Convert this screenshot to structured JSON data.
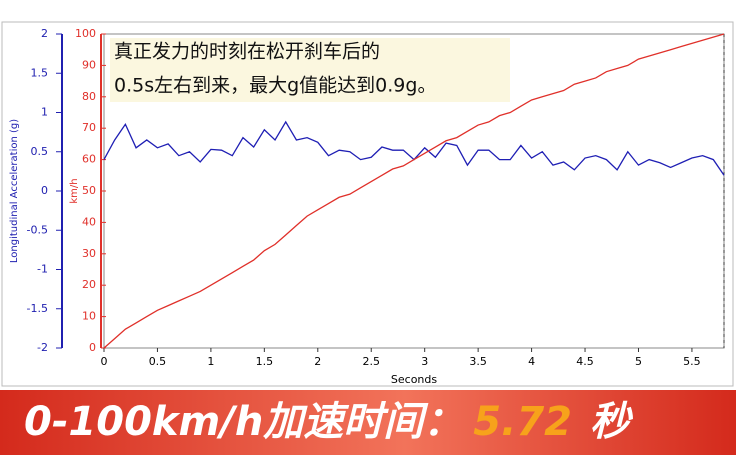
{
  "chart_data": {
    "type": "line",
    "annotation": [
      "真正发力的时刻在松开刹车后的",
      "0.5s左右到来，最大g值能达到0.9g。"
    ],
    "xlabel": "Seconds",
    "ylabel": "Longitudinal Acceleration (g)",
    "y2label": "km/h",
    "x": [
      0,
      0.1,
      0.2,
      0.3,
      0.4,
      0.5,
      0.6,
      0.7,
      0.8,
      0.9,
      1.0,
      1.1,
      1.2,
      1.3,
      1.4,
      1.5,
      1.6,
      1.7,
      1.8,
      1.9,
      2.0,
      2.1,
      2.2,
      2.3,
      2.4,
      2.5,
      2.6,
      2.7,
      2.8,
      2.9,
      3.0,
      3.1,
      3.2,
      3.3,
      3.4,
      3.5,
      3.6,
      3.7,
      3.8,
      3.9,
      4.0,
      4.1,
      4.2,
      4.3,
      4.4,
      4.5,
      4.6,
      4.7,
      4.8,
      4.9,
      5.0,
      5.1,
      5.2,
      5.3,
      5.4,
      5.5,
      5.6,
      5.7,
      5.8
    ],
    "series": [
      {
        "color": "#1f1fb4",
        "axis": "y",
        "values": [
          0.4,
          0.65,
          0.85,
          0.55,
          0.65,
          0.55,
          0.6,
          0.45,
          0.5,
          0.37,
          0.53,
          0.52,
          0.45,
          0.68,
          0.56,
          0.78,
          0.65,
          0.88,
          0.65,
          0.68,
          0.62,
          0.45,
          0.52,
          0.5,
          0.4,
          0.43,
          0.56,
          0.52,
          0.52,
          0.4,
          0.55,
          0.43,
          0.61,
          0.58,
          0.33,
          0.52,
          0.52,
          0.4,
          0.4,
          0.58,
          0.42,
          0.5,
          0.33,
          0.37,
          0.27,
          0.42,
          0.45,
          0.4,
          0.27,
          0.5,
          0.33,
          0.4,
          0.36,
          0.3,
          0.36,
          0.42,
          0.45,
          0.4,
          0.2
        ]
      },
      {
        "color": "#e0302a",
        "axis": "y2",
        "values": [
          0,
          3,
          6,
          8,
          10,
          12,
          13.5,
          15,
          16.5,
          18,
          20,
          22,
          24,
          26,
          28,
          31,
          33,
          36,
          39,
          42,
          44,
          46,
          48,
          49,
          51,
          53,
          55,
          57,
          58,
          60,
          62,
          64,
          66,
          67,
          69,
          71,
          72,
          74,
          75,
          77,
          79,
          80,
          81,
          82,
          84,
          85,
          86,
          88,
          89,
          90,
          92,
          93,
          94,
          95,
          96,
          97,
          98,
          99,
          100
        ]
      }
    ],
    "xlim": [
      0,
      5.8
    ],
    "xticks": [
      0,
      0.5,
      1,
      1.5,
      2,
      2.5,
      3,
      3.5,
      4,
      4.5,
      5,
      5.5
    ],
    "ylim": [
      -2,
      2
    ],
    "yticks": [
      -2,
      -1.5,
      -1,
      -0.5,
      0,
      0.5,
      1,
      1.5,
      2
    ],
    "y2lim": [
      0,
      100
    ],
    "y2ticks": [
      0,
      10,
      20,
      30,
      40,
      50,
      60,
      70,
      80,
      90,
      100
    ]
  },
  "banner": {
    "label": "0-100km/h加速时间：",
    "value": "5.72",
    "unit": "秒"
  }
}
